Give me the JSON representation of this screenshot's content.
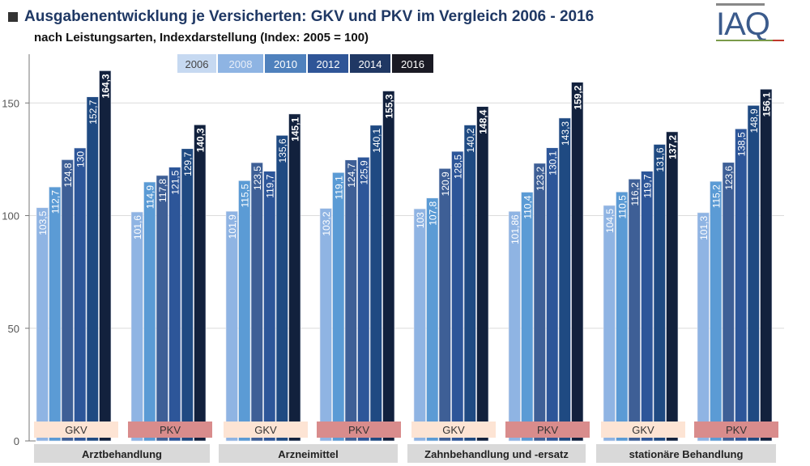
{
  "header": {
    "title": "Ausgabenentwicklung je Versicherten: GKV und PKV im Vergleich 2006 - 2016",
    "subtitle": "nach Leistungsarten, Indexdarstellung (Index: 2005 = 100)",
    "logo": "IAQ"
  },
  "chart_data": {
    "type": "bar",
    "title": "Ausgabenentwicklung je Versicherten: GKV und PKV im Vergleich 2006 - 2016",
    "subtitle": "nach Leistungsarten, Indexdarstellung (Index: 2005 = 100)",
    "ylim": [
      0,
      170
    ],
    "yticks": [
      0,
      50,
      100,
      150
    ],
    "grid": true,
    "legend_position": "top",
    "series_names": [
      "2006",
      "2008",
      "2010",
      "2012",
      "2014",
      "2016"
    ],
    "series_colors": [
      "#8fb4e3",
      "#5b9bd5",
      "#3e5f96",
      "#2d5699",
      "#1f4a82",
      "#12213d"
    ],
    "legend_colors": [
      "#c6d9f1",
      "#8eb4e3",
      "#4f81bd",
      "#2f5597",
      "#203864",
      "#1a1a24"
    ],
    "categories": [
      "Arztbehandlung",
      "Arzneimittel",
      "Zahnbehandlung und -ersatz",
      "stationäre Behandlung"
    ],
    "groups": [
      {
        "category": "Arztbehandlung",
        "insurer": "GKV",
        "values": [
          103.5,
          112.7,
          124.8,
          130,
          152.7,
          164.3
        ],
        "labels": [
          "103,5",
          "112,7",
          "124,8",
          "130",
          "152,7",
          "164,3"
        ]
      },
      {
        "category": "Arztbehandlung",
        "insurer": "PKV",
        "values": [
          101.6,
          114.9,
          117.8,
          121.5,
          129.7,
          140.3
        ],
        "labels": [
          "101,6",
          "114,9",
          "117,8",
          "121,5",
          "129,7",
          "140,3"
        ]
      },
      {
        "category": "Arzneimittel",
        "insurer": "GKV",
        "values": [
          101.9,
          115.5,
          123.5,
          119.7,
          135.6,
          145.1
        ],
        "labels": [
          "101,9",
          "115,5",
          "123,5",
          "119,7",
          "135,6",
          "145,1"
        ]
      },
      {
        "category": "Arzneimittel",
        "insurer": "PKV",
        "values": [
          103.2,
          119.1,
          124.7,
          125.9,
          140.1,
          155.3
        ],
        "labels": [
          "103,2",
          "119,1",
          "124,7",
          "125,9",
          "140,1",
          "155,3"
        ]
      },
      {
        "category": "Zahnbehandlung und -ersatz",
        "insurer": "GKV",
        "values": [
          103,
          107.8,
          120.9,
          128.5,
          140.2,
          148.4
        ],
        "labels": [
          "103",
          "107,8",
          "120,9",
          "128,5",
          "140,2",
          "148,4"
        ]
      },
      {
        "category": "Zahnbehandlung und -ersatz",
        "insurer": "PKV",
        "values": [
          101.86,
          110.4,
          123.2,
          130.1,
          143.3,
          159.2
        ],
        "labels": [
          "101,86",
          "110,4",
          "123,2",
          "130,1",
          "143,3",
          "159,2"
        ]
      },
      {
        "category": "stationäre Behandlung",
        "insurer": "GKV",
        "values": [
          104.5,
          110.5,
          116.2,
          119.7,
          131.6,
          137.2
        ],
        "labels": [
          "104,5",
          "110,5",
          "116,2",
          "119,7",
          "131,6",
          "137,2"
        ]
      },
      {
        "category": "stationäre Behandlung",
        "insurer": "PKV",
        "values": [
          101.3,
          115.2,
          123.6,
          138.5,
          148.9,
          156.1
        ],
        "labels": [
          "101,3",
          "115,2",
          "123,6",
          "138,5",
          "148,9",
          "156,1"
        ]
      }
    ],
    "insurer_colors": {
      "GKV": "#fde4d4",
      "PKV": "#d98c8c"
    }
  }
}
